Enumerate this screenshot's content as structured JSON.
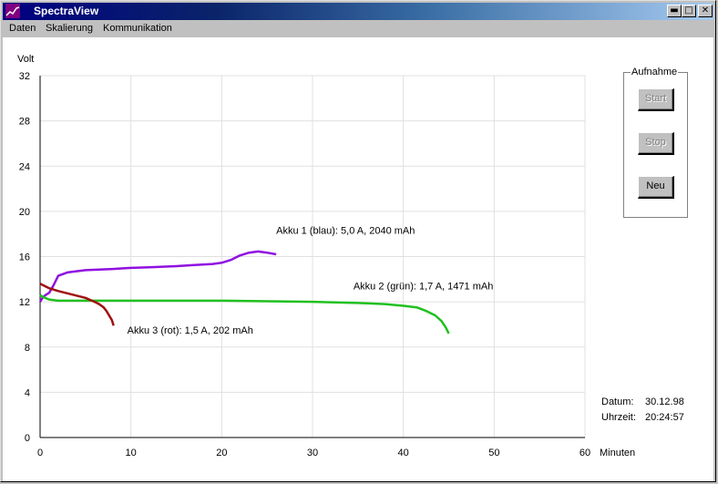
{
  "window": {
    "title": "SpectraView"
  },
  "menu": [
    "Daten",
    "Skalierung",
    "Kommunikation"
  ],
  "recording": {
    "group_label": "Aufnahme",
    "buttons": [
      {
        "label": "Start",
        "enabled": false
      },
      {
        "label": "Stop",
        "enabled": false
      },
      {
        "label": "Neu",
        "enabled": true
      }
    ]
  },
  "info": {
    "date_label": "Datum:",
    "date_value": "30.12.98",
    "time_label": "Uhrzeit:",
    "time_value": "20:24:57"
  },
  "chart_data": {
    "type": "line",
    "ylabel": "Volt",
    "xlabel": "Minuten",
    "xlim": [
      0,
      60
    ],
    "ylim": [
      0,
      32
    ],
    "xticks": [
      0,
      10,
      20,
      30,
      40,
      50,
      60
    ],
    "yticks": [
      0,
      4,
      8,
      12,
      16,
      20,
      24,
      28,
      32
    ],
    "grid": true,
    "series": [
      {
        "name": "Akku 1 (blau): 5,0 A, 2040 mAh",
        "color": "#9010e0",
        "x": [
          0,
          0.3,
          0.6,
          1.0,
          1.5,
          2.0,
          3,
          5,
          8,
          10,
          12,
          15,
          17,
          19,
          20,
          21,
          22,
          23,
          24,
          25,
          26
        ],
        "y": [
          12.0,
          12.4,
          12.6,
          12.8,
          13.5,
          14.3,
          14.6,
          14.8,
          14.9,
          15.0,
          15.05,
          15.15,
          15.25,
          15.35,
          15.45,
          15.7,
          16.1,
          16.35,
          16.45,
          16.35,
          16.2
        ]
      },
      {
        "name": "Akku 2 (grün): 1,7 A, 1471 mAh",
        "color": "#20c020",
        "x": [
          0,
          0.4,
          1,
          2,
          5,
          10,
          20,
          30,
          35,
          38,
          40,
          41.5,
          42.5,
          43.5,
          44.2,
          44.7,
          45
        ],
        "y": [
          12.6,
          12.4,
          12.2,
          12.1,
          12.1,
          12.1,
          12.1,
          12.0,
          11.9,
          11.8,
          11.65,
          11.5,
          11.2,
          10.8,
          10.3,
          9.7,
          9.2
        ]
      },
      {
        "name": "Akku 3 (rot): 1,5 A, 202 mAh",
        "color": "#a01010",
        "x": [
          0,
          0.5,
          1,
          2,
          3,
          4,
          5,
          6,
          6.5,
          7,
          7.3,
          7.6,
          7.9,
          8.1
        ],
        "y": [
          13.6,
          13.4,
          13.2,
          12.95,
          12.75,
          12.55,
          12.35,
          12.0,
          11.8,
          11.5,
          11.2,
          10.8,
          10.4,
          9.9
        ]
      }
    ],
    "annotations": [
      {
        "text": "Akku 1 (blau): 5,0 A, 2040 mAh",
        "x": 26,
        "y": 18
      },
      {
        "text": "Akku 2 (grün): 1,7 A, 1471 mAh",
        "x": 34.5,
        "y": 13.1
      },
      {
        "text": "Akku 3 (rot): 1,5 A, 202 mAh",
        "x": 9.6,
        "y": 9.2
      }
    ]
  }
}
